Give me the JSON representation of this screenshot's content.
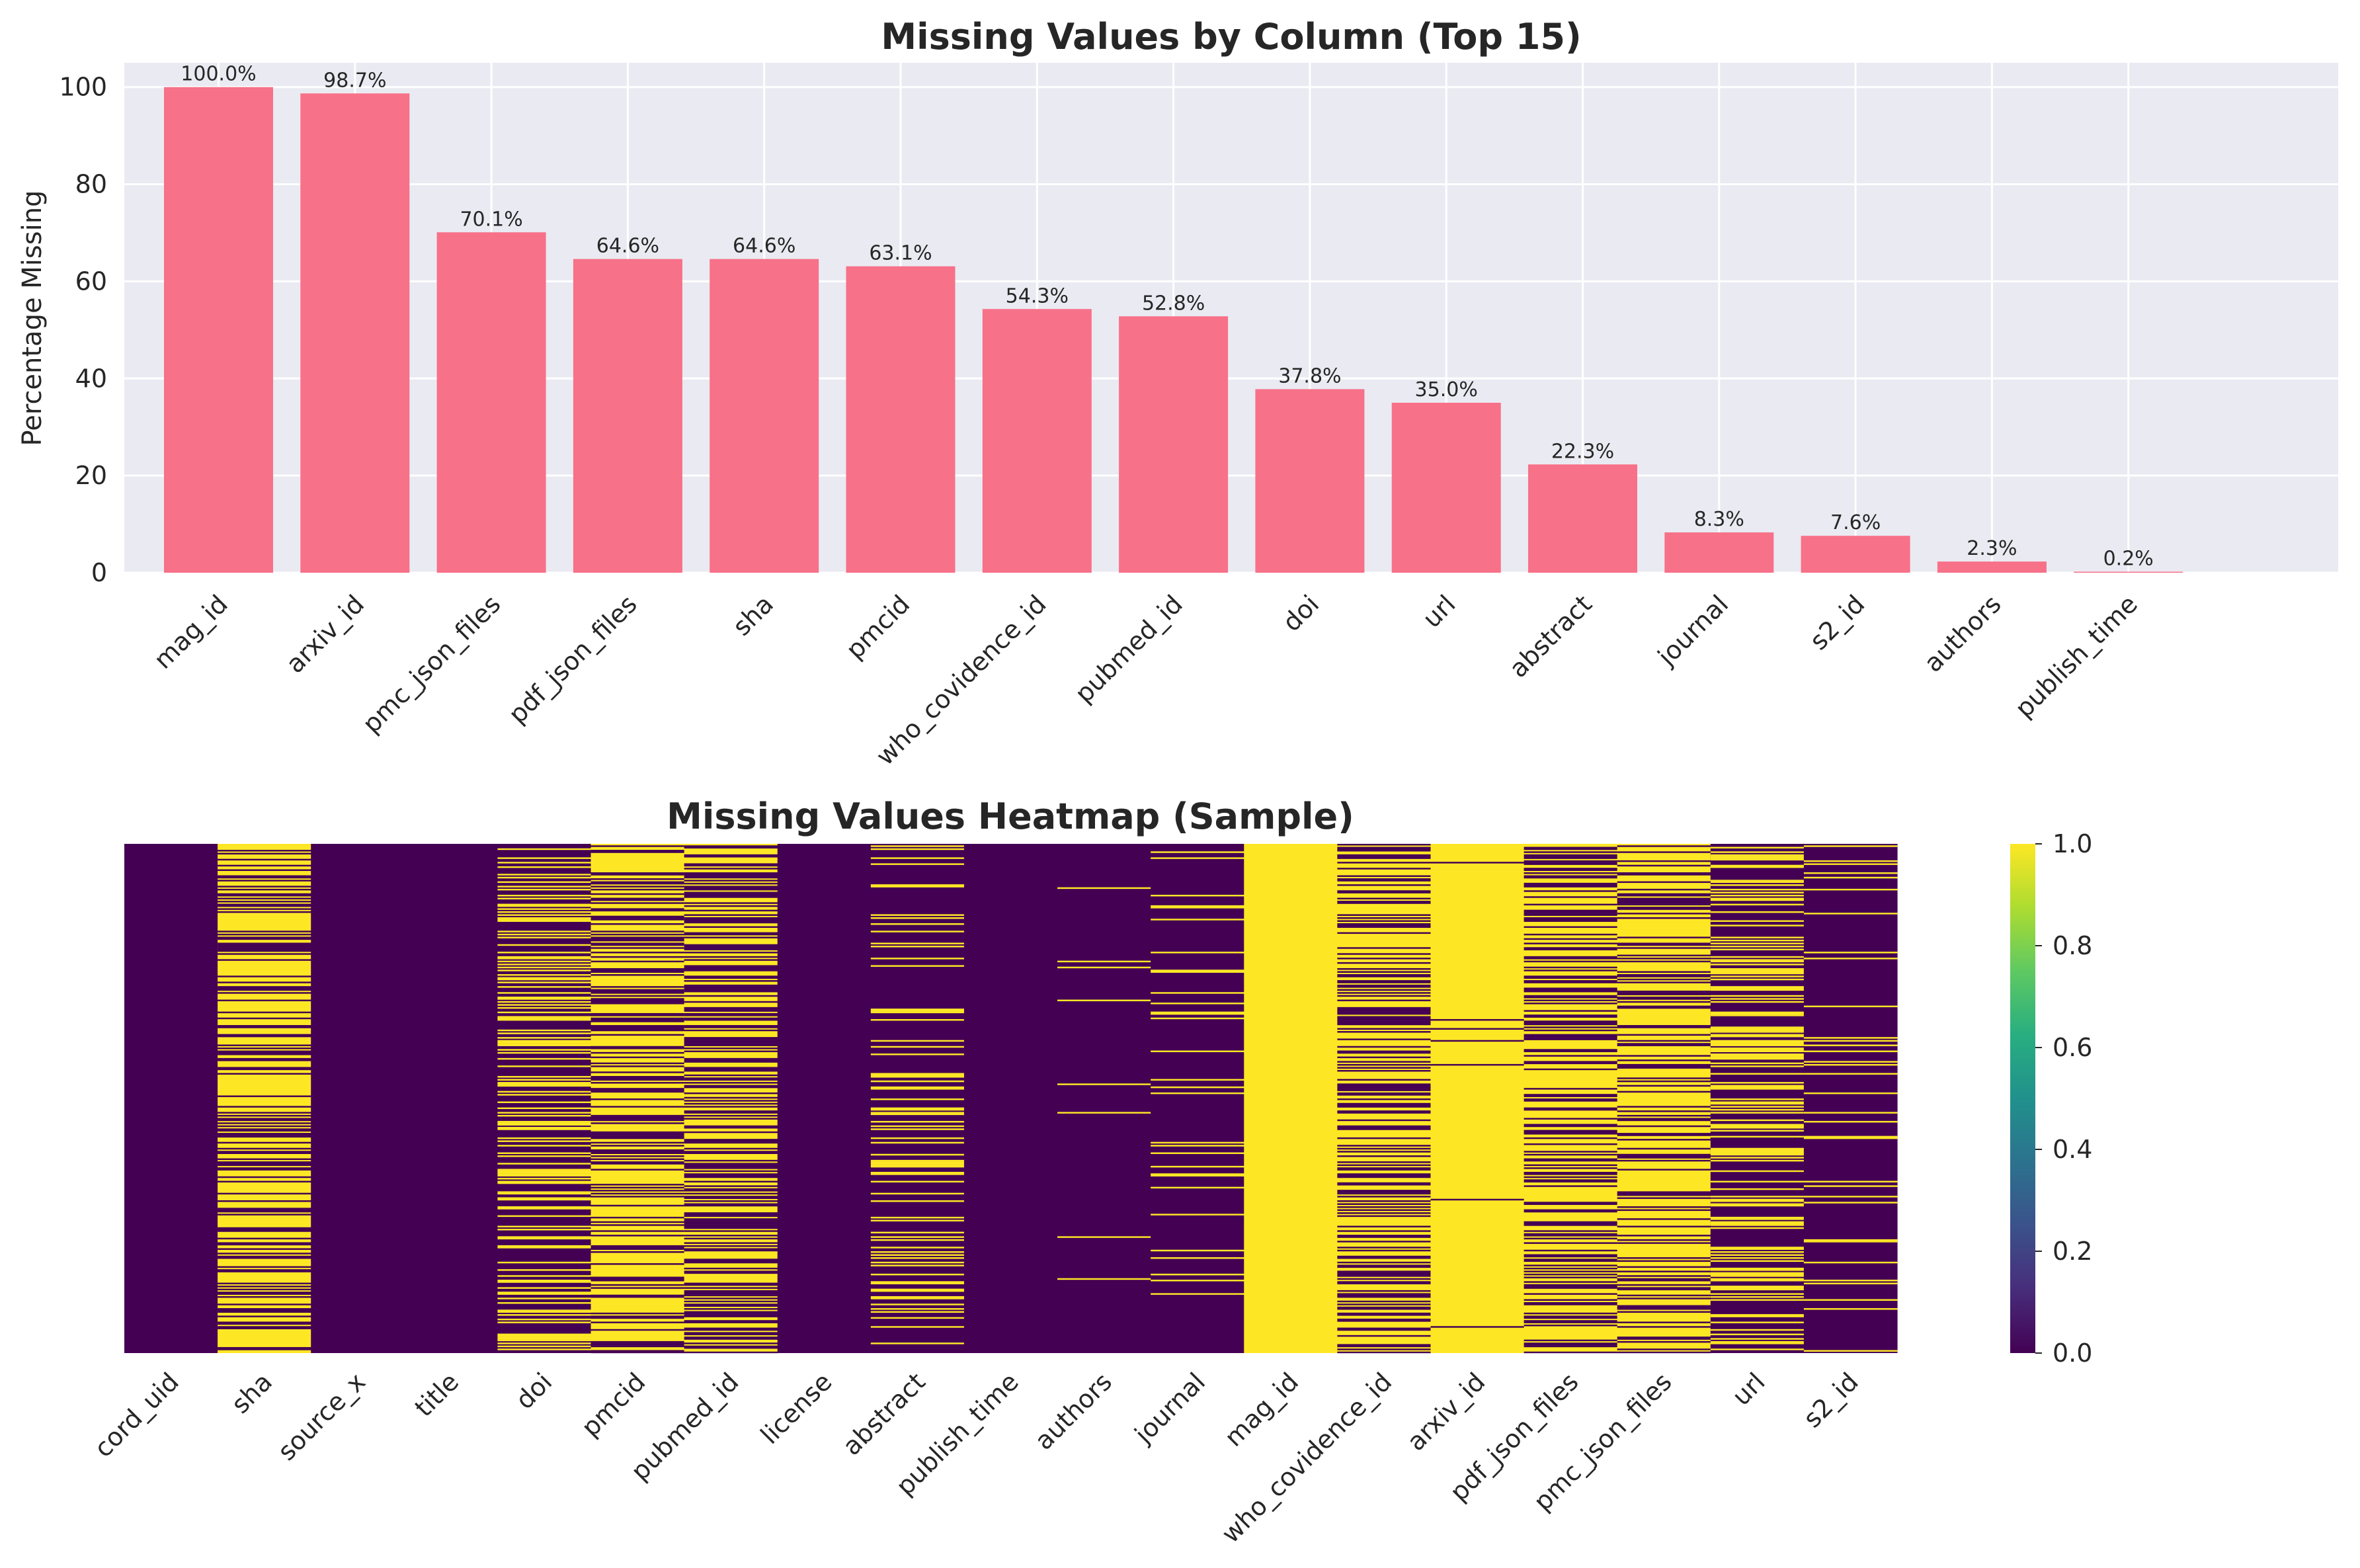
{
  "chart_data": [
    {
      "type": "bar",
      "title": "Missing Values by Column (Top 15)",
      "xlabel": "",
      "ylabel": "Percentage Missing",
      "ylim": [
        0,
        105
      ],
      "yticks": [
        "0",
        "20",
        "40",
        "60",
        "80",
        "100"
      ],
      "grid": true,
      "bar_color": "#f77189",
      "background": "#eaeaf2",
      "categories": [
        "mag_id",
        "arxiv_id",
        "pmc_json_files",
        "pdf_json_files",
        "sha",
        "pmcid",
        "who_covidence_id",
        "pubmed_id",
        "doi",
        "url",
        "abstract",
        "journal",
        "s2_id",
        "authors",
        "publish_time"
      ],
      "values": [
        100.0,
        98.7,
        70.1,
        64.6,
        64.6,
        63.1,
        54.3,
        52.8,
        37.8,
        35.0,
        22.3,
        8.3,
        7.6,
        2.3,
        0.2
      ],
      "value_labels": [
        "100.0%",
        "98.7%",
        "70.1%",
        "64.6%",
        "64.6%",
        "63.1%",
        "54.3%",
        "52.8%",
        "37.8%",
        "35.0%",
        "22.3%",
        "8.3%",
        "7.6%",
        "2.3%",
        "0.2%"
      ]
    },
    {
      "type": "heatmap",
      "title": "Missing Values Heatmap (Sample)",
      "colormap": "viridis",
      "colorbar_range": [
        0.0,
        1.0
      ],
      "colorbar_ticks": [
        "0.0",
        "0.2",
        "0.4",
        "0.6",
        "0.8",
        "1.0"
      ],
      "columns": [
        "cord_uid",
        "sha",
        "source_x",
        "title",
        "doi",
        "pmcid",
        "pubmed_id",
        "license",
        "abstract",
        "publish_time",
        "authors",
        "journal",
        "mag_id",
        "who_covidence_id",
        "arxiv_id",
        "pdf_json_files",
        "pmc_json_files",
        "url",
        "s2_id"
      ],
      "missing_fraction": [
        0.0,
        0.65,
        0.0,
        0.0,
        0.38,
        0.63,
        0.53,
        0.0,
        0.22,
        0.0,
        0.02,
        0.08,
        1.0,
        0.54,
        0.987,
        0.65,
        0.7,
        0.35,
        0.08
      ],
      "colors": {
        "missing": "#fde725",
        "present": "#440154"
      }
    }
  ]
}
